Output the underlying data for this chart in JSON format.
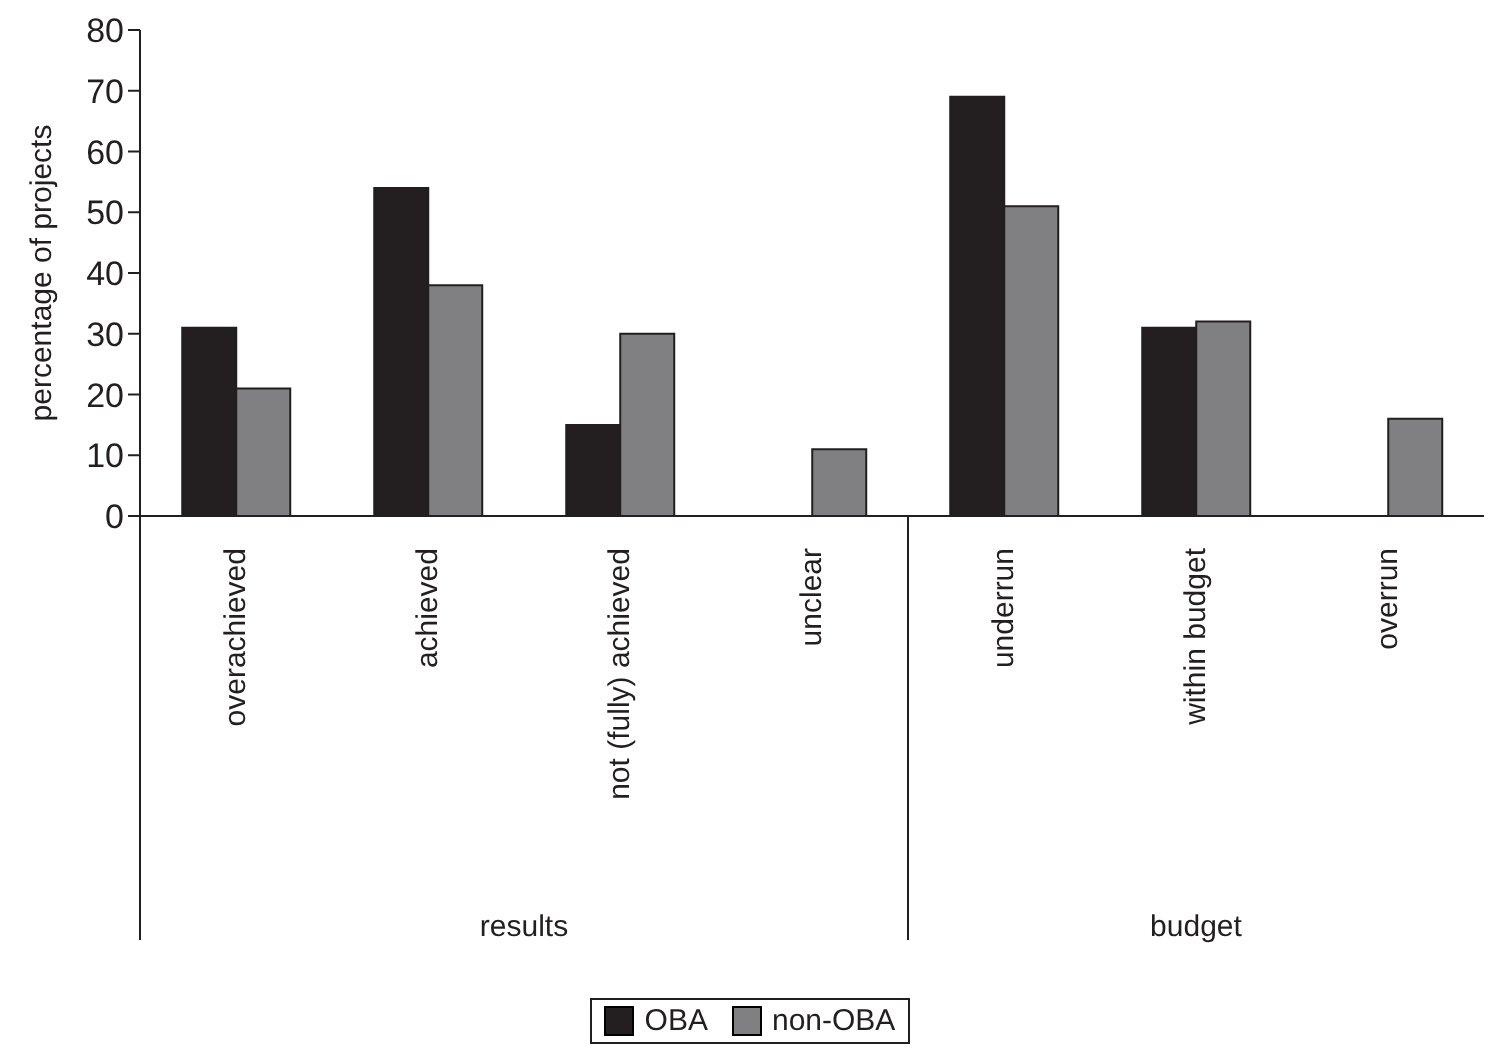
{
  "chart_data": {
    "type": "bar",
    "ylabel": "percentage of projects",
    "categories": [
      "overachieved",
      "achieved",
      "not (fully) achieved",
      "unclear",
      "underrun",
      "within budget",
      "overrun"
    ],
    "series": [
      {
        "name": "OBA",
        "color": "#231f20",
        "values": [
          31,
          54,
          15,
          0,
          69,
          31,
          0
        ]
      },
      {
        "name": "non-OBA",
        "color": "#808083",
        "values": [
          21,
          38,
          30,
          11,
          51,
          32,
          16
        ]
      }
    ],
    "ylim": [
      0,
      80
    ],
    "yticks": [
      0,
      10,
      20,
      30,
      40,
      50,
      60,
      70,
      80
    ],
    "grid": false,
    "legend": "bottom",
    "annotations": [
      "results",
      "budget"
    ]
  }
}
